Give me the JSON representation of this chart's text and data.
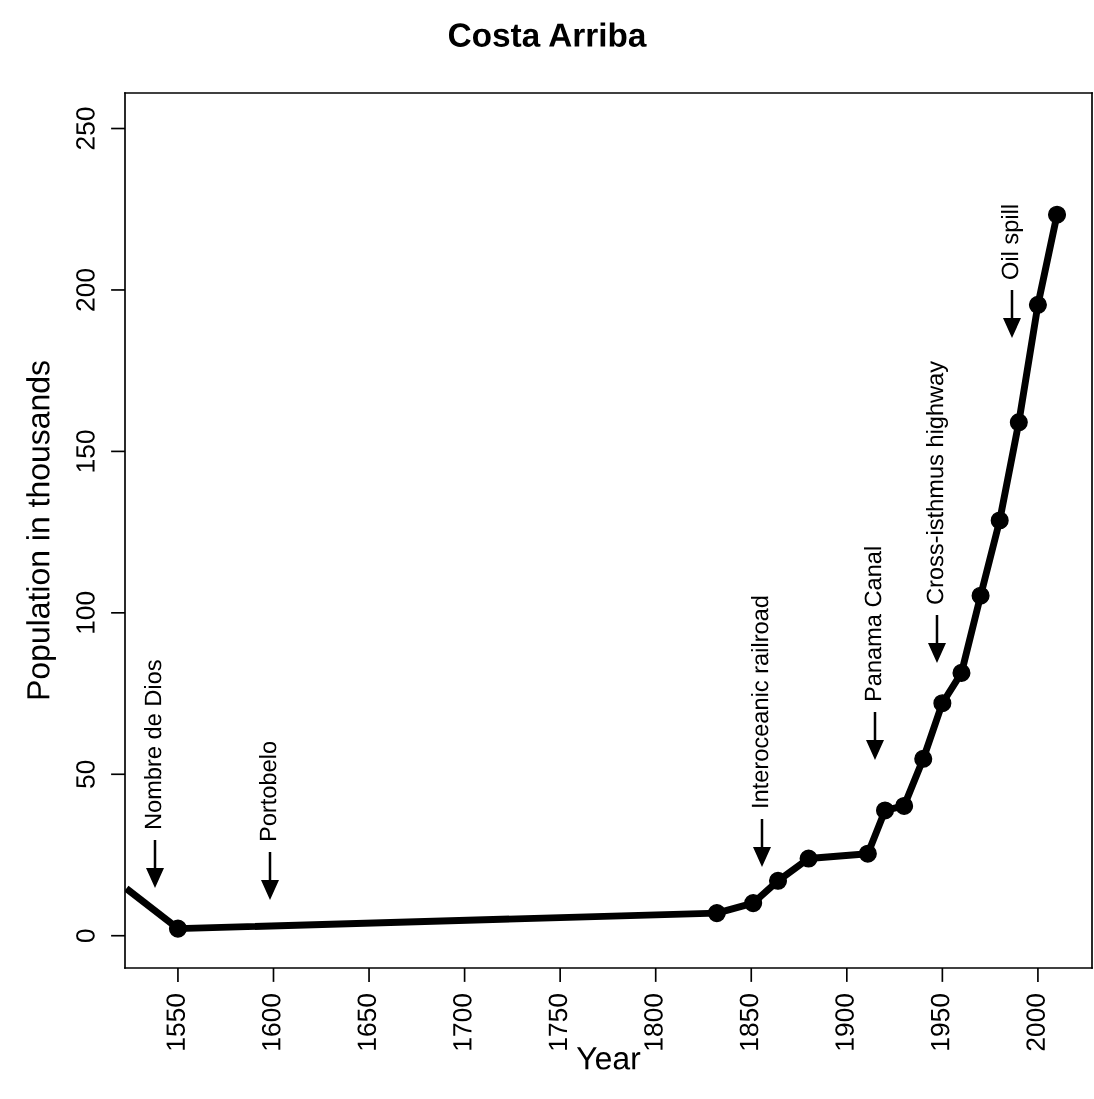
{
  "chart_data": {
    "type": "line",
    "title": "Costa Arriba",
    "xlabel": "Year",
    "ylabel": "Population in thousands",
    "series": [
      {
        "color": "#000000",
        "x": [
          1523,
          1550
        ],
        "values": [
          14.6,
          2.2
        ]
      },
      {
        "color": "#000000",
        "marker": "circle",
        "x": [
          1550,
          1832,
          1851,
          1864,
          1880,
          1911,
          1920,
          1930,
          1940,
          1950,
          1960,
          1970,
          1980,
          1990,
          2000,
          2010
        ],
        "values": [
          2.2,
          7.0,
          10.1,
          17.0,
          23.9,
          25.4,
          38.8,
          40.2,
          54.8,
          72.0,
          81.4,
          105.3,
          128.6,
          159.0,
          195.4,
          223.3
        ]
      }
    ],
    "annotations": [
      "Nombre de Dios",
      "Portobelo",
      "Interoceanic railroad",
      "Panama Canal",
      "Cross-isthmus highway",
      "Oil spill"
    ],
    "xlim": [
      1522.3,
      2028.3
    ],
    "ylim": [
      -10,
      261
    ],
    "xticks": [
      1550,
      1600,
      1650,
      1700,
      1750,
      1800,
      1850,
      1900,
      1950,
      2000
    ],
    "yticks": [
      0,
      50,
      100,
      150,
      200,
      250
    ],
    "grid": false,
    "legend": false
  }
}
